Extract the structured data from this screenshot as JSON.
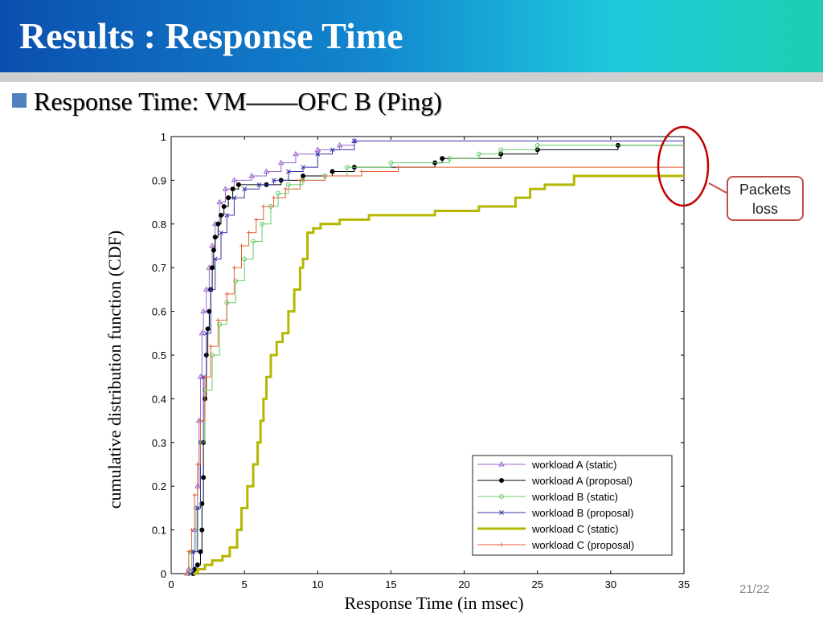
{
  "slide": {
    "title": "Results : Response Time",
    "bullet": "Response Time: VM——OFC B (Ping)",
    "callout": "Packets loss",
    "page_number": "21/22"
  },
  "colors": {
    "title_gradient_start": "#0b4fae",
    "title_gradient_end": "#1dcfb0",
    "bullet": "#4f81bd",
    "callout_border": "#c0504d"
  },
  "chart_data": {
    "type": "line",
    "subtype": "step-cdf",
    "xlabel": "Response Time (in msec)",
    "ylabel": "cumulative distribution function (CDF)",
    "xlim": [
      0,
      35
    ],
    "ylim": [
      0,
      1
    ],
    "xticks": [
      0,
      5,
      10,
      15,
      20,
      25,
      30,
      35
    ],
    "yticks": [
      0,
      0.1,
      0.2,
      0.3,
      0.4,
      0.5,
      0.6,
      0.7,
      0.8,
      0.9,
      1
    ],
    "legend_position": "bottom-right",
    "annotation": {
      "label": "Packets loss",
      "x": 35,
      "y_range": [
        0.9,
        1.0
      ]
    },
    "series": [
      {
        "name": "workload A (static)",
        "color": "#9966cc",
        "marker": "triangle",
        "line_width": 1,
        "points": [
          [
            1.1,
            0
          ],
          [
            1.2,
            0.01
          ],
          [
            1.4,
            0.05
          ],
          [
            1.6,
            0.1
          ],
          [
            1.8,
            0.2
          ],
          [
            1.9,
            0.35
          ],
          [
            2.0,
            0.45
          ],
          [
            2.1,
            0.55
          ],
          [
            2.2,
            0.6
          ],
          [
            2.4,
            0.65
          ],
          [
            2.6,
            0.7
          ],
          [
            2.8,
            0.75
          ],
          [
            3.0,
            0.8
          ],
          [
            3.3,
            0.85
          ],
          [
            3.7,
            0.88
          ],
          [
            4.3,
            0.9
          ],
          [
            5.5,
            0.91
          ],
          [
            6.5,
            0.92
          ],
          [
            7.5,
            0.94
          ],
          [
            8.5,
            0.96
          ],
          [
            10.0,
            0.97
          ],
          [
            11.5,
            0.98
          ],
          [
            12.5,
            0.99
          ],
          [
            35,
            0.99
          ]
        ]
      },
      {
        "name": "workload A (proposal)",
        "color": "#000000",
        "marker": "dot",
        "line_width": 1,
        "points": [
          [
            1.5,
            0
          ],
          [
            1.6,
            0.01
          ],
          [
            1.8,
            0.02
          ],
          [
            2.0,
            0.05
          ],
          [
            2.1,
            0.1
          ],
          [
            2.1,
            0.16
          ],
          [
            2.2,
            0.22
          ],
          [
            2.2,
            0.3
          ],
          [
            2.3,
            0.4
          ],
          [
            2.4,
            0.5
          ],
          [
            2.5,
            0.56
          ],
          [
            2.6,
            0.6
          ],
          [
            2.7,
            0.65
          ],
          [
            2.8,
            0.7
          ],
          [
            2.9,
            0.74
          ],
          [
            3.0,
            0.77
          ],
          [
            3.2,
            0.8
          ],
          [
            3.4,
            0.82
          ],
          [
            3.6,
            0.84
          ],
          [
            3.9,
            0.86
          ],
          [
            4.2,
            0.88
          ],
          [
            4.6,
            0.89
          ],
          [
            6.5,
            0.89
          ],
          [
            7.5,
            0.9
          ],
          [
            9.0,
            0.91
          ],
          [
            11.0,
            0.92
          ],
          [
            12.5,
            0.93
          ],
          [
            18.0,
            0.94
          ],
          [
            18.5,
            0.95
          ],
          [
            22.5,
            0.96
          ],
          [
            25.0,
            0.97
          ],
          [
            30.5,
            0.98
          ],
          [
            35,
            0.98
          ]
        ]
      },
      {
        "name": "workload B (static)",
        "color": "#66cc66",
        "marker": "circle",
        "line_width": 1,
        "points": [
          [
            1.2,
            0
          ],
          [
            1.4,
            0.05
          ],
          [
            1.7,
            0.15
          ],
          [
            2.0,
            0.3
          ],
          [
            2.3,
            0.42
          ],
          [
            2.8,
            0.5
          ],
          [
            3.3,
            0.57
          ],
          [
            3.8,
            0.62
          ],
          [
            4.4,
            0.67
          ],
          [
            5.0,
            0.72
          ],
          [
            5.6,
            0.76
          ],
          [
            6.2,
            0.8
          ],
          [
            6.8,
            0.84
          ],
          [
            7.3,
            0.87
          ],
          [
            8.0,
            0.89
          ],
          [
            9.0,
            0.9
          ],
          [
            10.5,
            0.91
          ],
          [
            12.0,
            0.93
          ],
          [
            15.0,
            0.94
          ],
          [
            19.0,
            0.95
          ],
          [
            21.0,
            0.96
          ],
          [
            22.5,
            0.97
          ],
          [
            25.0,
            0.98
          ],
          [
            35,
            0.98
          ]
        ]
      },
      {
        "name": "workload B (proposal)",
        "color": "#3333aa",
        "marker": "x",
        "line_width": 1,
        "points": [
          [
            1.3,
            0
          ],
          [
            1.5,
            0.05
          ],
          [
            1.8,
            0.15
          ],
          [
            2.0,
            0.3
          ],
          [
            2.2,
            0.45
          ],
          [
            2.4,
            0.55
          ],
          [
            2.7,
            0.65
          ],
          [
            3.0,
            0.72
          ],
          [
            3.4,
            0.78
          ],
          [
            3.8,
            0.82
          ],
          [
            4.3,
            0.86
          ],
          [
            5.0,
            0.88
          ],
          [
            6.0,
            0.89
          ],
          [
            7.0,
            0.9
          ],
          [
            8.0,
            0.92
          ],
          [
            9.0,
            0.93
          ],
          [
            10.0,
            0.96
          ],
          [
            11.0,
            0.97
          ],
          [
            12.5,
            0.99
          ],
          [
            35,
            0.99
          ]
        ]
      },
      {
        "name": "workload C (static)",
        "color": "#b5b800",
        "marker": "none",
        "line_width": 3,
        "points": [
          [
            1.5,
            0
          ],
          [
            1.8,
            0.01
          ],
          [
            2.3,
            0.02
          ],
          [
            2.8,
            0.03
          ],
          [
            3.5,
            0.04
          ],
          [
            4.0,
            0.06
          ],
          [
            4.5,
            0.1
          ],
          [
            4.8,
            0.15
          ],
          [
            5.2,
            0.2
          ],
          [
            5.6,
            0.25
          ],
          [
            5.9,
            0.3
          ],
          [
            6.1,
            0.35
          ],
          [
            6.3,
            0.4
          ],
          [
            6.5,
            0.45
          ],
          [
            6.8,
            0.5
          ],
          [
            7.2,
            0.53
          ],
          [
            7.6,
            0.55
          ],
          [
            8.0,
            0.6
          ],
          [
            8.4,
            0.65
          ],
          [
            8.8,
            0.7
          ],
          [
            9.0,
            0.72
          ],
          [
            9.3,
            0.78
          ],
          [
            9.7,
            0.79
          ],
          [
            10.2,
            0.8
          ],
          [
            11.5,
            0.81
          ],
          [
            13.5,
            0.82
          ],
          [
            16.0,
            0.82
          ],
          [
            18.0,
            0.83
          ],
          [
            21.0,
            0.84
          ],
          [
            23.5,
            0.86
          ],
          [
            24.5,
            0.88
          ],
          [
            25.5,
            0.89
          ],
          [
            27.5,
            0.91
          ],
          [
            35,
            0.91
          ]
        ]
      },
      {
        "name": "workload C (proposal)",
        "color": "#e06030",
        "marker": "plus",
        "line_width": 1,
        "points": [
          [
            1.1,
            0
          ],
          [
            1.2,
            0.05
          ],
          [
            1.4,
            0.1
          ],
          [
            1.6,
            0.18
          ],
          [
            1.8,
            0.25
          ],
          [
            2.0,
            0.35
          ],
          [
            2.3,
            0.45
          ],
          [
            2.7,
            0.52
          ],
          [
            3.2,
            0.58
          ],
          [
            3.8,
            0.64
          ],
          [
            4.3,
            0.7
          ],
          [
            4.8,
            0.75
          ],
          [
            5.3,
            0.78
          ],
          [
            5.8,
            0.81
          ],
          [
            6.3,
            0.84
          ],
          [
            7.0,
            0.86
          ],
          [
            7.8,
            0.88
          ],
          [
            8.8,
            0.9
          ],
          [
            10.5,
            0.91
          ],
          [
            13.0,
            0.92
          ],
          [
            15.5,
            0.93
          ],
          [
            35,
            0.93
          ]
        ]
      }
    ]
  }
}
